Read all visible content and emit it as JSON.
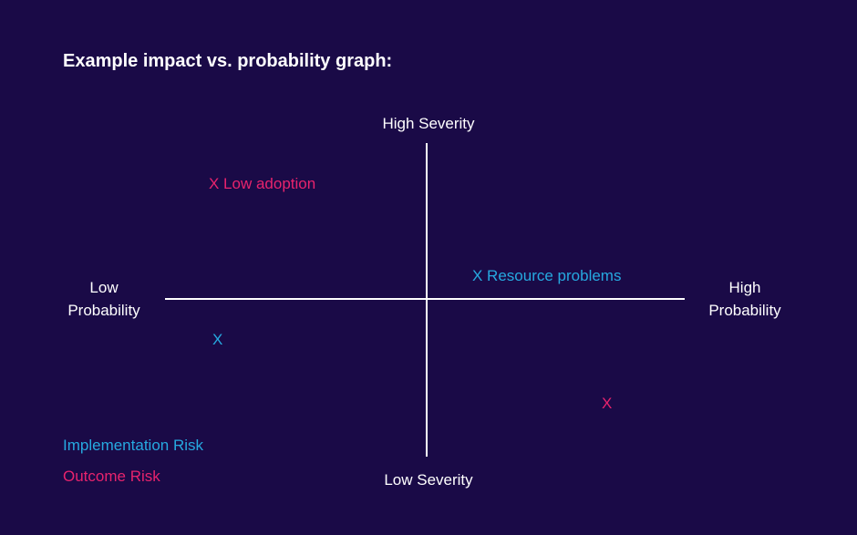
{
  "title": "Example impact vs. probability graph:",
  "axes": {
    "top": "High Severity",
    "bottom": "Low Severity",
    "left_line1": "Low",
    "left_line2": "Probability",
    "right_line1": "High",
    "right_line2": "Probability"
  },
  "markers": [
    {
      "text": "X Low adoption",
      "category": "Outcome Risk"
    },
    {
      "text": "X Resource problems",
      "category": "Implementation Risk"
    },
    {
      "text": "X",
      "category": "Implementation Risk"
    },
    {
      "text": "X",
      "category": "Outcome Risk"
    }
  ],
  "legend": [
    {
      "label": "Implementation Risk",
      "color": "#26a9e0"
    },
    {
      "label": "Outcome Risk",
      "color": "#e8236d"
    }
  ],
  "colors": {
    "background": "#1a0a47",
    "axis": "#ffffff",
    "implementation": "#26a9e0",
    "outcome": "#e8236d"
  }
}
